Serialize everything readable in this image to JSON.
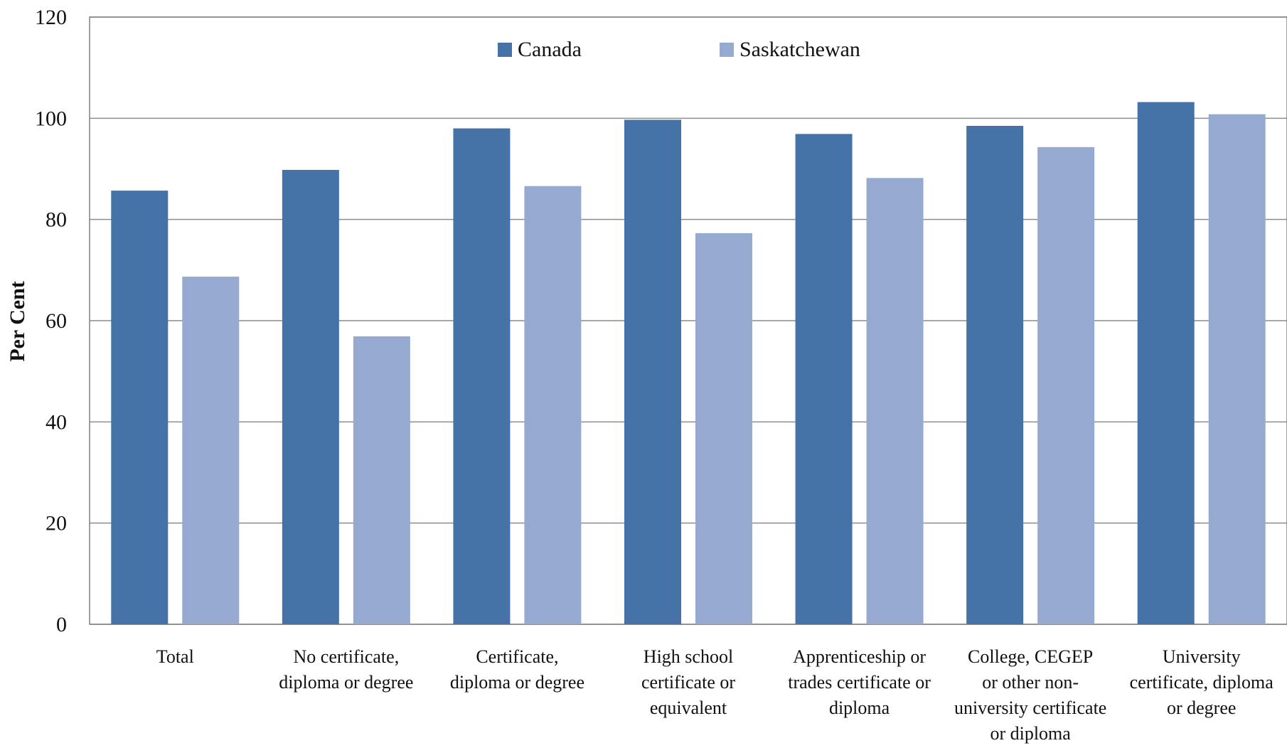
{
  "chart_data": {
    "type": "bar",
    "title": "",
    "xlabel": "",
    "ylabel": "Per Cent",
    "ylim": [
      0,
      120
    ],
    "yticks": [
      0,
      20,
      40,
      60,
      80,
      100,
      120
    ],
    "grid": true,
    "legend_position": "top-center",
    "categories": [
      [
        "Total"
      ],
      [
        "No certificate,",
        "diploma or degree"
      ],
      [
        "Certificate,",
        "diploma or degree"
      ],
      [
        "High school",
        "certificate or",
        "equivalent"
      ],
      [
        "Apprenticeship or",
        "trades certificate or",
        "diploma"
      ],
      [
        "College, CEGEP",
        "or other non-",
        "university certificate",
        "or diploma"
      ],
      [
        "University",
        "certificate, diploma",
        "or degree"
      ]
    ],
    "series": [
      {
        "name": "Canada",
        "color": "#4673a7",
        "values": [
          85.7,
          89.8,
          98.0,
          99.7,
          96.9,
          98.5,
          103.2
        ]
      },
      {
        "name": "Saskatchewan",
        "color": "#96aad1",
        "values": [
          68.7,
          56.9,
          86.6,
          77.3,
          88.2,
          94.3,
          100.8
        ]
      }
    ]
  }
}
